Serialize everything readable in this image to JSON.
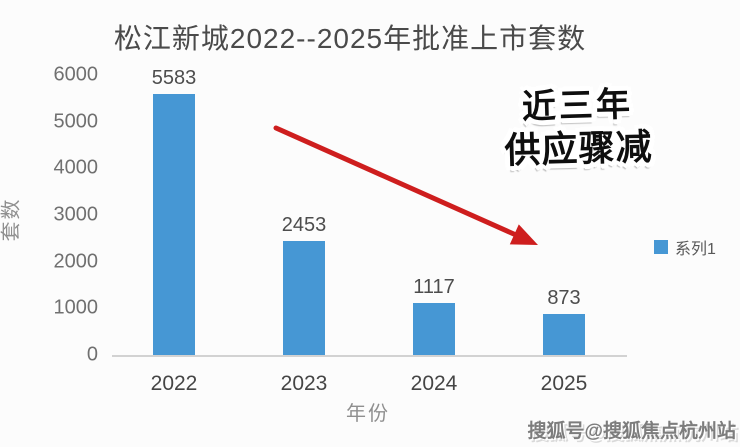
{
  "page": {
    "background": "#fcfcfc"
  },
  "chart_data": {
    "type": "bar",
    "title": "松江新城2022--2025年批准上市套数",
    "categories": [
      "2022",
      "2023",
      "2024",
      "2025"
    ],
    "values": [
      5583,
      2453,
      1117,
      873
    ],
    "xlabel": "年份",
    "ylabel": "套数",
    "ylim": [
      0,
      6000
    ],
    "yticks": [
      0,
      1000,
      2000,
      3000,
      4000,
      5000,
      6000
    ],
    "bar_color": "#4697d4",
    "grid": false,
    "legend": {
      "label": "系列1",
      "position": "right"
    }
  },
  "annotation": {
    "line1": "近三年",
    "line2": "供应骤减",
    "arrow_color": "#ce1e1e"
  },
  "watermark": {
    "text": "搜狐号@搜狐焦点杭州站"
  }
}
